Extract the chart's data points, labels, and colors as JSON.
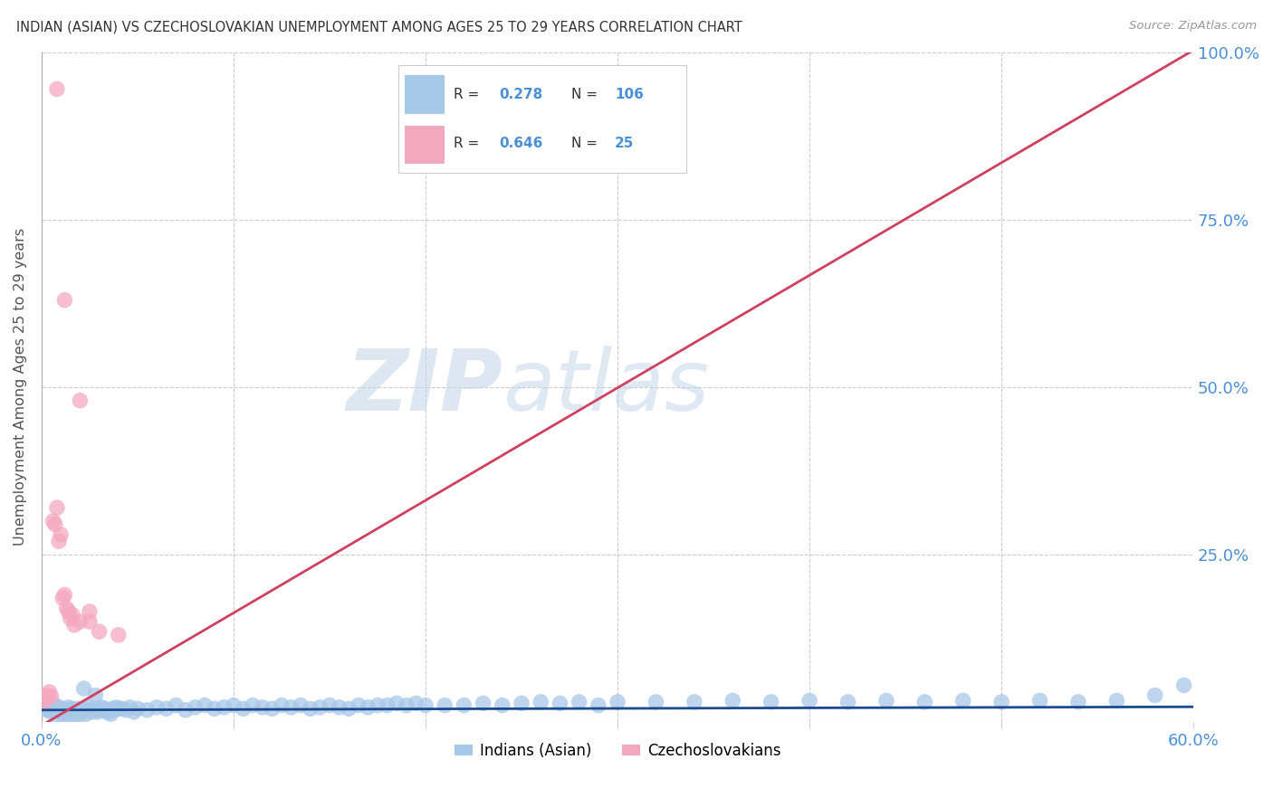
{
  "title": "INDIAN (ASIAN) VS CZECHOSLOVAKIAN UNEMPLOYMENT AMONG AGES 25 TO 29 YEARS CORRELATION CHART",
  "source": "Source: ZipAtlas.com",
  "ylabel": "Unemployment Among Ages 25 to 29 years",
  "xlim": [
    0.0,
    0.6
  ],
  "ylim": [
    0.0,
    1.0
  ],
  "xtick_vals": [
    0.0,
    0.1,
    0.2,
    0.3,
    0.4,
    0.5,
    0.6
  ],
  "xticklabels": [
    "0.0%",
    "",
    "",
    "",
    "",
    "",
    "60.0%"
  ],
  "ytick_vals": [
    0.0,
    0.25,
    0.5,
    0.75,
    1.0
  ],
  "yticklabels": [
    "",
    "25.0%",
    "50.0%",
    "75.0%",
    "100.0%"
  ],
  "legend_labels": [
    "Indians (Asian)",
    "Czechoslovakians"
  ],
  "R_indian": 0.278,
  "N_indian": 106,
  "R_czech": 0.646,
  "N_czech": 25,
  "indian_color": "#a8c8e8",
  "czech_color": "#f4a8c0",
  "indian_line_color": "#1a4a90",
  "czech_line_color": "#d04060",
  "watermark_zip": "ZIP",
  "watermark_atlas": "atlas",
  "indian_line_slope": 0.008,
  "indian_line_intercept": 0.018,
  "czech_line_slope": 1.68,
  "czech_line_intercept": -0.005,
  "indian_x": [
    0.001,
    0.002,
    0.003,
    0.004,
    0.005,
    0.006,
    0.007,
    0.008,
    0.009,
    0.01,
    0.011,
    0.012,
    0.013,
    0.014,
    0.015,
    0.016,
    0.017,
    0.018,
    0.019,
    0.02,
    0.021,
    0.022,
    0.023,
    0.024,
    0.025,
    0.026,
    0.027,
    0.028,
    0.029,
    0.03,
    0.031,
    0.032,
    0.033,
    0.034,
    0.035,
    0.036,
    0.037,
    0.038,
    0.039,
    0.04,
    0.042,
    0.044,
    0.046,
    0.048,
    0.05,
    0.055,
    0.06,
    0.065,
    0.07,
    0.075,
    0.08,
    0.085,
    0.09,
    0.095,
    0.1,
    0.105,
    0.11,
    0.115,
    0.12,
    0.125,
    0.13,
    0.135,
    0.14,
    0.145,
    0.15,
    0.155,
    0.16,
    0.165,
    0.17,
    0.175,
    0.18,
    0.185,
    0.19,
    0.195,
    0.2,
    0.21,
    0.22,
    0.23,
    0.24,
    0.25,
    0.26,
    0.27,
    0.28,
    0.29,
    0.3,
    0.32,
    0.34,
    0.36,
    0.38,
    0.4,
    0.42,
    0.44,
    0.46,
    0.48,
    0.5,
    0.52,
    0.54,
    0.56,
    0.58,
    0.595,
    0.008,
    0.012,
    0.018,
    0.022,
    0.028,
    0.035
  ],
  "indian_y": [
    0.02,
    0.025,
    0.018,
    0.022,
    0.015,
    0.02,
    0.025,
    0.018,
    0.022,
    0.015,
    0.02,
    0.012,
    0.018,
    0.022,
    0.015,
    0.02,
    0.018,
    0.012,
    0.02,
    0.018,
    0.015,
    0.02,
    0.012,
    0.018,
    0.022,
    0.015,
    0.018,
    0.02,
    0.015,
    0.018,
    0.022,
    0.018,
    0.02,
    0.015,
    0.018,
    0.012,
    0.02,
    0.018,
    0.022,
    0.02,
    0.02,
    0.018,
    0.022,
    0.015,
    0.02,
    0.018,
    0.022,
    0.02,
    0.025,
    0.018,
    0.022,
    0.025,
    0.02,
    0.022,
    0.025,
    0.02,
    0.025,
    0.022,
    0.02,
    0.025,
    0.022,
    0.025,
    0.02,
    0.022,
    0.025,
    0.022,
    0.02,
    0.025,
    0.022,
    0.025,
    0.025,
    0.028,
    0.025,
    0.028,
    0.025,
    0.025,
    0.025,
    0.028,
    0.025,
    0.028,
    0.03,
    0.028,
    0.03,
    0.025,
    0.03,
    0.03,
    0.03,
    0.032,
    0.03,
    0.032,
    0.03,
    0.032,
    0.03,
    0.032,
    0.03,
    0.032,
    0.03,
    0.032,
    0.04,
    0.055,
    0.0,
    0.0,
    0.0,
    0.05,
    0.04,
    0.015
  ],
  "czech_x": [
    0.001,
    0.002,
    0.003,
    0.004,
    0.005,
    0.006,
    0.007,
    0.008,
    0.009,
    0.01,
    0.011,
    0.012,
    0.013,
    0.014,
    0.015,
    0.016,
    0.017,
    0.02,
    0.025,
    0.03,
    0.02,
    0.025,
    0.008,
    0.012,
    0.04
  ],
  "czech_y": [
    0.03,
    0.035,
    0.04,
    0.045,
    0.038,
    0.3,
    0.295,
    0.32,
    0.27,
    0.28,
    0.185,
    0.19,
    0.17,
    0.165,
    0.155,
    0.16,
    0.145,
    0.15,
    0.165,
    0.135,
    0.48,
    0.15,
    0.945,
    0.63,
    0.13
  ]
}
